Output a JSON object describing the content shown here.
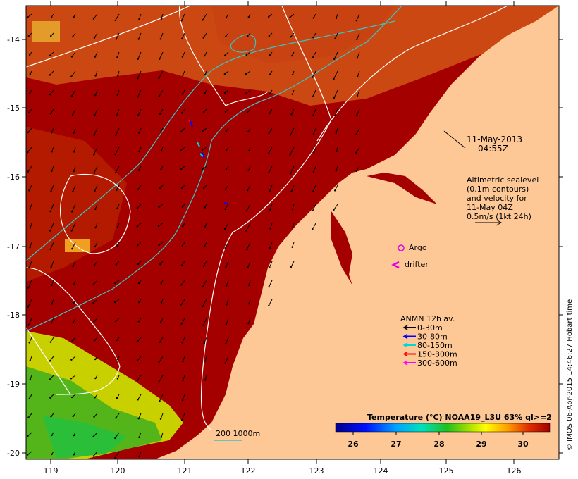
{
  "map": {
    "date_line1": "11-May-2013",
    "date_line2": "04:55Z",
    "x_ticks": [
      "119",
      "120",
      "121",
      "122",
      "123",
      "124",
      "125",
      "126"
    ],
    "y_ticks": [
      "-14",
      "-15",
      "-16",
      "-17",
      "-18",
      "-19",
      "-20"
    ],
    "land_color": "#fdc896",
    "sea_color": "#a40000",
    "contour_color": "#ffffff",
    "isobath_color": "#39c4c4"
  },
  "altimetry": {
    "lines": [
      "Altimetric sealevel",
      "(0.1m contours)",
      "and velocity for",
      "11-May 04Z",
      "0.5m/s (1kt 24h)"
    ]
  },
  "markers": {
    "argo_label": "Argo",
    "argo_color": "#e000e0",
    "drifter_label": "drifter",
    "drifter_color": "#e000e0"
  },
  "anmn": {
    "title": "ANMN 12h av.",
    "items": [
      {
        "label": "0-30m",
        "color": "#000000"
      },
      {
        "label": "30-80m",
        "color": "#0000ff"
      },
      {
        "label": "80-150m",
        "color": "#00d8d8"
      },
      {
        "label": "150-300m",
        "color": "#ff0000"
      },
      {
        "label": "300-600m",
        "color": "#ff00ff"
      }
    ]
  },
  "colorbar": {
    "title": "Temperature (°C) NOAA19_L3U 63% ql>=2",
    "ticks": [
      "26",
      "27",
      "28",
      "29",
      "30"
    ]
  },
  "isobath_legend": "200  1000m",
  "credit": "© IMOS 06-Apr-2015 14:46:27 Hobart time"
}
